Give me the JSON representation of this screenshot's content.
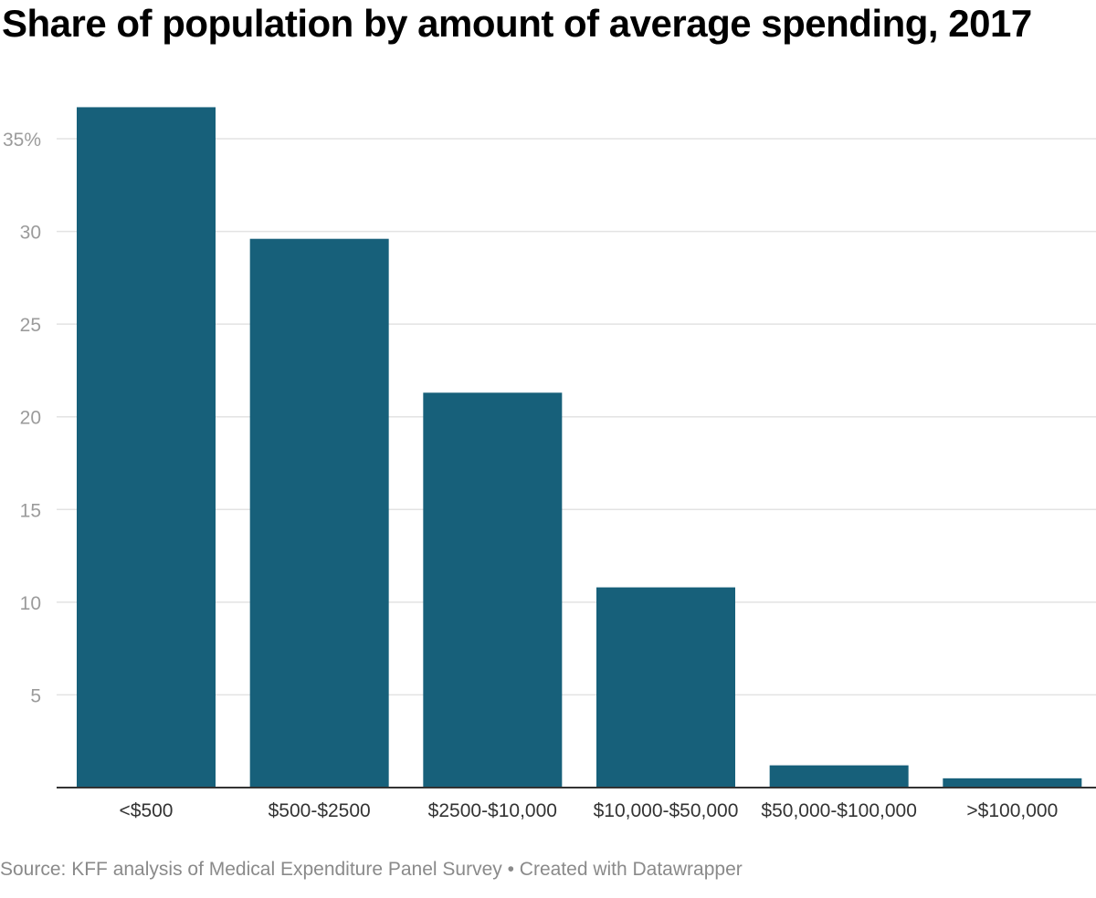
{
  "chart_data": {
    "type": "bar",
    "title": "Share of population by amount of average spending, 2017",
    "categories": [
      "<$500",
      "$500-$2500",
      "$2500-$10,000",
      "$10,000-$50,000",
      "$50,000-$100,000",
      ">$100,000"
    ],
    "values": [
      36.7,
      29.6,
      21.3,
      10.8,
      1.2,
      0.5
    ],
    "xlabel": "",
    "ylabel": "",
    "ylim": [
      0,
      35
    ],
    "yticks": [
      5,
      10,
      15,
      20,
      25,
      30,
      35
    ],
    "ytick_labels": [
      "5",
      "10",
      "15",
      "20",
      "25",
      "30",
      "35%"
    ],
    "grid": true,
    "bar_color": "#17607a",
    "grid_color": "#e3e3e3",
    "source": "Source: KFF analysis of Medical Expenditure Panel Survey • Created with Datawrapper"
  }
}
